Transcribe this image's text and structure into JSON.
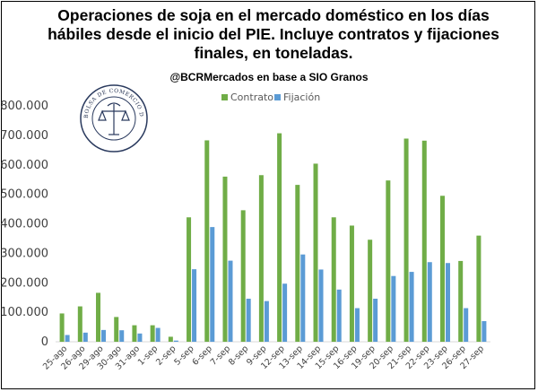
{
  "chart_data": {
    "type": "bar",
    "title": "Operaciones de soja en el mercado doméstico en los días hábiles desde el inicio del PIE. Incluye contratos y fijaciones finales, en toneladas.",
    "subtitle": "@BCRMercados en base a SIO Granos",
    "seal_text": "BOLSA DE COMERCIO DE ROSARIO",
    "categories": [
      "25-ago",
      "26-ago",
      "29-ago",
      "30-ago",
      "31-ago",
      "1-sep",
      "2-sep",
      "5-sep",
      "6-sep",
      "7-sep",
      "8-sep",
      "9-sep",
      "12-sep",
      "13-sep",
      "14-sep",
      "15-sep",
      "16-sep",
      "19-sep",
      "20-sep",
      "21-sep",
      "22-sep",
      "23-sep",
      "26-sep",
      "27-sep"
    ],
    "series": [
      {
        "name": "Contrato",
        "color": "#70ad47",
        "values": [
          96000,
          120000,
          166000,
          84000,
          56000,
          56000,
          17000,
          422000,
          683000,
          560000,
          446000,
          565000,
          707000,
          532000,
          604000,
          422000,
          394000,
          346000,
          547000,
          689000,
          682000,
          495000,
          274000,
          360000
        ]
      },
      {
        "name": "Fijación",
        "color": "#5b9bd5",
        "values": [
          23000,
          31000,
          40000,
          39000,
          28000,
          47000,
          4000,
          246000,
          389000,
          275000,
          146000,
          138000,
          197000,
          296000,
          245000,
          177000,
          114000,
          146000,
          223000,
          237000,
          270000,
          267000,
          114000,
          70000
        ]
      }
    ],
    "ylim": [
      0,
      800000
    ],
    "yticks": [
      "0",
      "100.000",
      "200.000",
      "300.000",
      "400.000",
      "500.000",
      "600.000",
      "700.000",
      "800.000"
    ],
    "legend_position": "top-center",
    "grid": false
  }
}
